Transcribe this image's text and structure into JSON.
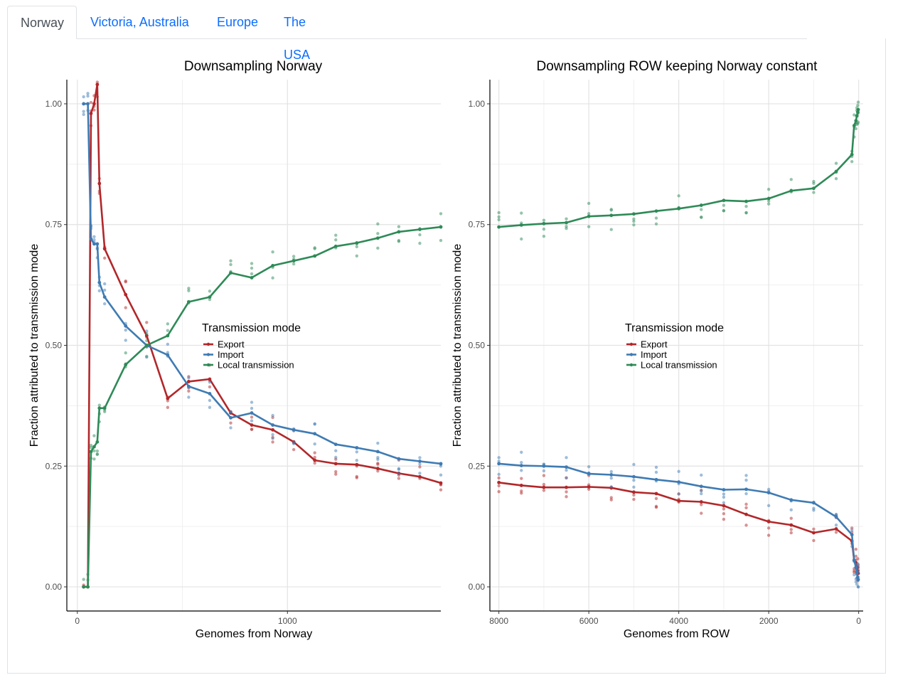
{
  "tabs": [
    {
      "label": "Norway",
      "active": true
    },
    {
      "label": "Victoria, Australia",
      "active": false
    },
    {
      "label": "Europe",
      "active": false
    },
    {
      "label": "The USA",
      "active": false
    }
  ],
  "colors": {
    "Export": "#b2272a",
    "Import": "#3f7bb3",
    "Local transmission": "#2e8a57"
  },
  "legend": {
    "title": "Transmission mode",
    "items": [
      "Export",
      "Import",
      "Local transmission"
    ]
  },
  "chart_data": [
    {
      "type": "line",
      "title": "Downsampling Norway",
      "xlabel": "Genomes from Norway",
      "ylabel": "Fraction attributed to transmission mode",
      "xlim": [
        -50,
        1730
      ],
      "ylim": [
        -0.05,
        1.05
      ],
      "x_reversed": false,
      "xticks": [
        0,
        1000
      ],
      "yticks": [
        0,
        0.25,
        0.5,
        0.75,
        1
      ],
      "ytick_labels": [
        "0.00",
        "0.25",
        "0.50",
        "0.75",
        "1.00"
      ],
      "grid": true,
      "legend_position": "center",
      "x": [
        30,
        50,
        65,
        80,
        95,
        105,
        130,
        230,
        330,
        430,
        530,
        630,
        730,
        830,
        930,
        1030,
        1130,
        1230,
        1330,
        1430,
        1530,
        1630,
        1730
      ],
      "series": [
        {
          "name": "Export",
          "values": [
            0,
            0,
            0.98,
            1.0,
            1.04,
            0.835,
            0.7,
            0.605,
            0.52,
            0.39,
            0.425,
            0.43,
            0.36,
            0.335,
            0.325,
            0.3,
            0.262,
            0.255,
            0.253,
            0.245,
            0.235,
            0.228,
            0.215
          ]
        },
        {
          "name": "Import",
          "values": [
            1,
            1,
            0.72,
            0.71,
            0.71,
            0.63,
            0.6,
            0.54,
            0.5,
            0.48,
            0.415,
            0.4,
            0.35,
            0.36,
            0.335,
            0.325,
            0.317,
            0.295,
            0.288,
            0.28,
            0.265,
            0.26,
            0.255
          ]
        },
        {
          "name": "Local transmission",
          "values": [
            0,
            0,
            0.28,
            0.29,
            0.3,
            0.37,
            0.37,
            0.46,
            0.5,
            0.52,
            0.59,
            0.6,
            0.65,
            0.64,
            0.665,
            0.675,
            0.685,
            0.705,
            0.712,
            0.722,
            0.735,
            0.74,
            0.745
          ]
        }
      ]
    },
    {
      "type": "line",
      "title": "Downsampling ROW keeping Norway constant",
      "xlabel": "Genomes from ROW",
      "ylabel": "Fraction attributed to transmission mode",
      "xlim": [
        8200,
        -100
      ],
      "ylim": [
        -0.05,
        1.05
      ],
      "x_reversed": true,
      "xticks": [
        8000,
        6000,
        4000,
        2000,
        0
      ],
      "yticks": [
        0,
        0.25,
        0.5,
        0.75,
        1
      ],
      "ytick_labels": [
        "0.00",
        "0.25",
        "0.50",
        "0.75",
        "1.00"
      ],
      "grid": true,
      "legend_position": "center",
      "x": [
        8000,
        7500,
        7000,
        6500,
        6000,
        5500,
        5000,
        4500,
        4000,
        3500,
        3000,
        2500,
        2000,
        1500,
        1000,
        500,
        150,
        100,
        60,
        40,
        20,
        10
      ],
      "series": [
        {
          "name": "Export",
          "values": [
            0.216,
            0.21,
            0.206,
            0.206,
            0.207,
            0.205,
            0.196,
            0.193,
            0.178,
            0.176,
            0.168,
            0.15,
            0.135,
            0.128,
            0.112,
            0.12,
            0.095,
            0.055,
            0.05,
            0.04,
            0.033,
            0.028
          ]
        },
        {
          "name": "Import",
          "values": [
            0.255,
            0.251,
            0.25,
            0.248,
            0.234,
            0.232,
            0.228,
            0.222,
            0.217,
            0.208,
            0.201,
            0.202,
            0.195,
            0.18,
            0.174,
            0.145,
            0.108,
            0.055,
            0.04,
            0.03,
            0.02,
            0.015
          ]
        },
        {
          "name": "Local transmission",
          "values": [
            0.745,
            0.749,
            0.752,
            0.754,
            0.767,
            0.769,
            0.772,
            0.778,
            0.783,
            0.79,
            0.8,
            0.798,
            0.804,
            0.82,
            0.825,
            0.86,
            0.895,
            0.955,
            0.965,
            0.975,
            0.983,
            0.988
          ]
        }
      ]
    }
  ]
}
